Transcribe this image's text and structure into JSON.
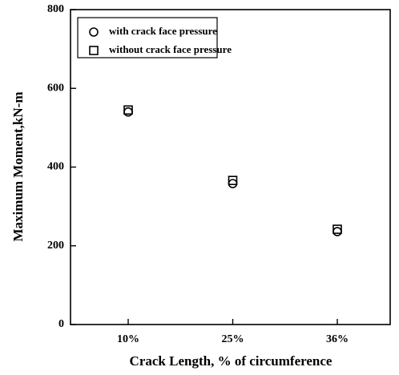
{
  "chart_data": {
    "type": "scatter",
    "x_label": "Crack Length, % of circumference",
    "y_label": "Maximum Moment,kN-m",
    "categories": [
      "10%",
      "25%",
      "36%"
    ],
    "series": [
      {
        "name": "with crack face pressure",
        "color": "#000000",
        "marker": "circle",
        "values": [
          540,
          358,
          236
        ]
      },
      {
        "name": "without crack face pressure",
        "color": "#000000",
        "marker": "square",
        "values": [
          545,
          366,
          242
        ]
      }
    ],
    "ylim": [
      0,
      800
    ],
    "yticks": [
      0,
      200,
      400,
      600,
      800
    ],
    "grid": false,
    "legend": "upper left"
  }
}
